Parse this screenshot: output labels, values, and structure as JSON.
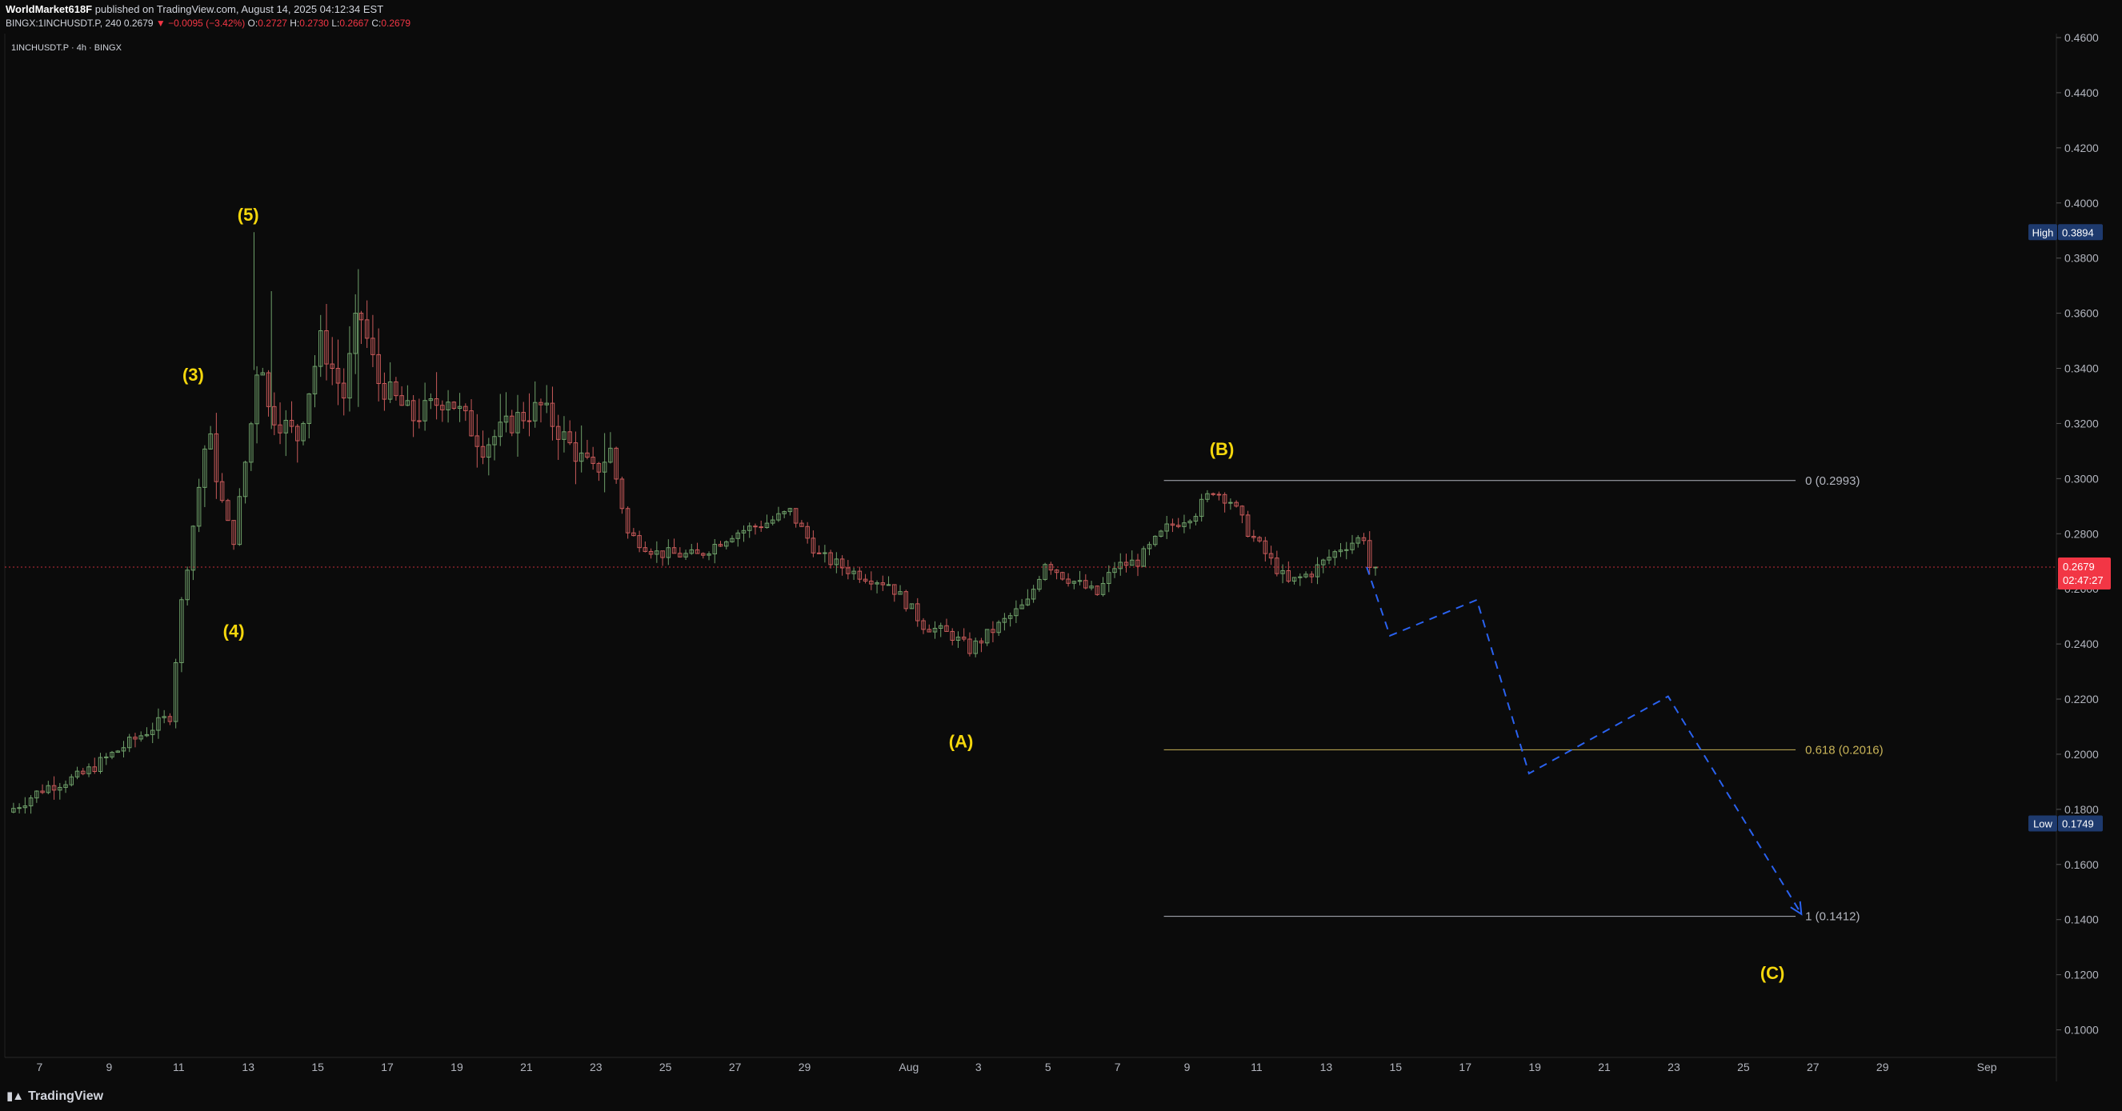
{
  "header": {
    "author": "WorldMarket618F",
    "published": "published on TradingView.com, August 14, 2025 04:12:34 EST",
    "symbol_line": "BINGX:1INCHUSDT.P, 240",
    "last": "0.2679",
    "down_arrow": "▼",
    "change": "−0.0095 (−3.42%)",
    "o_label": "O:",
    "o": "0.2727",
    "h_label": "H:",
    "h": "0.2730",
    "l_label": "L:",
    "l": "0.2667",
    "c_label": "C:",
    "c": "0.2679"
  },
  "legend": {
    "symbol": "1INCHUSDT.P · 4h · BINGX"
  },
  "footer": {
    "brand": "TradingView",
    "logo_icon": "tradingview-logo-icon"
  },
  "chart_data": {
    "type": "candlestick",
    "ylim": [
      0.09,
      0.46
    ],
    "y_ticks": [
      "0.4600",
      "0.4400",
      "0.4200",
      "0.4000",
      "0.3800",
      "0.3600",
      "0.3400",
      "0.3200",
      "0.3000",
      "0.2800",
      "0.2600",
      "0.2400",
      "0.2200",
      "0.2000",
      "0.1800",
      "0.1600",
      "0.1400",
      "0.1200",
      "0.1000"
    ],
    "x_ticks": [
      "7",
      "9",
      "11",
      "13",
      "15",
      "17",
      "19",
      "21",
      "23",
      "25",
      "27",
      "29",
      "Aug",
      "3",
      "5",
      "7",
      "9",
      "11",
      "13",
      "15",
      "17",
      "19",
      "21",
      "23",
      "25",
      "27",
      "29",
      "Sep"
    ],
    "x_range_days": {
      "start": "2025-07-06",
      "end": "2025-09-03"
    },
    "price_path": [
      [
        "2025-07-06T04:00",
        0.179
      ],
      [
        "2025-07-07T06:00",
        0.188
      ],
      [
        "2025-07-08T06:00",
        0.192
      ],
      [
        "2025-07-09T04:00",
        0.2
      ],
      [
        "2025-07-10T06:00",
        0.209
      ],
      [
        "2025-07-10T20:00",
        0.214
      ],
      [
        "2025-07-11T04:00",
        0.255
      ],
      [
        "2025-07-11T14:00",
        0.29
      ],
      [
        "2025-07-11T22:00",
        0.318
      ],
      [
        "2025-07-12T10:00",
        0.286
      ],
      [
        "2025-07-12T16:00",
        0.278
      ],
      [
        "2025-07-13T04:00",
        0.32
      ],
      [
        "2025-07-13T10:00",
        0.35
      ],
      [
        "2025-07-13T16:00",
        0.325
      ],
      [
        "2025-07-14T12:00",
        0.315
      ],
      [
        "2025-07-15T04:00",
        0.35
      ],
      [
        "2025-07-15T20:00",
        0.33
      ],
      [
        "2025-07-16T06:00",
        0.362
      ],
      [
        "2025-07-16T20:00",
        0.335
      ],
      [
        "2025-07-17T20:00",
        0.322
      ],
      [
        "2025-07-18T20:00",
        0.33
      ],
      [
        "2025-07-19T20:00",
        0.312
      ],
      [
        "2025-07-20T20:00",
        0.322
      ],
      [
        "2025-07-21T12:00",
        0.326
      ],
      [
        "2025-07-22T08:00",
        0.312
      ],
      [
        "2025-07-23T00:00",
        0.302
      ],
      [
        "2025-07-23T12:00",
        0.31
      ],
      [
        "2025-07-24T00:00",
        0.28
      ],
      [
        "2025-07-24T20:00",
        0.273
      ],
      [
        "2025-07-26T00:00",
        0.272
      ],
      [
        "2025-07-27T00:00",
        0.28
      ],
      [
        "2025-07-28T00:00",
        0.284
      ],
      [
        "2025-07-28T16:00",
        0.288
      ],
      [
        "2025-07-29T12:00",
        0.272
      ],
      [
        "2025-07-30T12:00",
        0.266
      ],
      [
        "2025-07-31T12:00",
        0.262
      ],
      [
        "2025-08-01T00:00",
        0.255
      ],
      [
        "2025-08-01T12:00",
        0.247
      ],
      [
        "2025-08-02T08:00",
        0.243
      ],
      [
        "2025-08-02T20:00",
        0.238
      ],
      [
        "2025-08-03T12:00",
        0.245
      ],
      [
        "2025-08-04T12:00",
        0.255
      ],
      [
        "2025-08-05T00:00",
        0.27
      ],
      [
        "2025-08-05T12:00",
        0.265
      ],
      [
        "2025-08-06T12:00",
        0.258
      ],
      [
        "2025-08-07T00:00",
        0.268
      ],
      [
        "2025-08-07T16:00",
        0.27
      ],
      [
        "2025-08-08T12:00",
        0.282
      ],
      [
        "2025-08-09T08:00",
        0.288
      ],
      [
        "2025-08-09T20:00",
        0.296
      ],
      [
        "2025-08-10T08:00",
        0.292
      ],
      [
        "2025-08-10T20:00",
        0.281
      ],
      [
        "2025-08-11T12:00",
        0.27
      ],
      [
        "2025-08-12T00:00",
        0.262
      ],
      [
        "2025-08-12T16:00",
        0.266
      ],
      [
        "2025-08-13T12:00",
        0.275
      ],
      [
        "2025-08-14T04:00",
        0.279
      ],
      [
        "2025-08-14T08:00",
        0.2679
      ]
    ],
    "projection": [
      [
        "2025-08-14T04:00",
        0.2679
      ],
      [
        "2025-08-14T20:00",
        0.243
      ],
      [
        "2025-08-17T08:00",
        0.256
      ],
      [
        "2025-08-18T20:00",
        0.193
      ],
      [
        "2025-08-22T20:00",
        0.221
      ],
      [
        "2025-08-26T16:00",
        0.142
      ]
    ],
    "fib": {
      "start": "2025-08-08T08:00",
      "end": "2025-08-26T12:00",
      "levels": [
        {
          "label": "0 (0.2993)",
          "value": 0.2993,
          "color": "#b2b5be"
        },
        {
          "label": "0.618 (0.2016)",
          "value": 0.2016,
          "color": "#c9b458"
        },
        {
          "label": "1 (0.1412)",
          "value": 0.1412,
          "color": "#b2b5be"
        }
      ]
    },
    "waves": [
      {
        "label": "(3)",
        "t": "2025-07-11T10:00",
        "price": 0.3355
      },
      {
        "label": "(4)",
        "t": "2025-07-12T14:00",
        "price": 0.2425
      },
      {
        "label": "(5)",
        "t": "2025-07-13T00:00",
        "price": 0.3935
      },
      {
        "label": "(A)",
        "t": "2025-08-02T12:00",
        "price": 0.2025
      },
      {
        "label": "(B)",
        "t": "2025-08-10T00:00",
        "price": 0.3085
      },
      {
        "label": "(C)",
        "t": "2025-08-25T20:00",
        "price": 0.1185
      }
    ],
    "high": {
      "label": "High",
      "value": "0.3894",
      "price": 0.3894
    },
    "low": {
      "label": "Low",
      "value": "0.1749",
      "price": 0.1749
    },
    "current": {
      "price": 0.2679,
      "value": "0.2679",
      "countdown": "02:47:27"
    },
    "colors": {
      "up": "#6fa06a",
      "down": "#c85a5a",
      "projection": "#2a62f0",
      "wave": "#f5d70c",
      "current": "#f23645",
      "hl_badge": "#1e3a6e"
    }
  }
}
